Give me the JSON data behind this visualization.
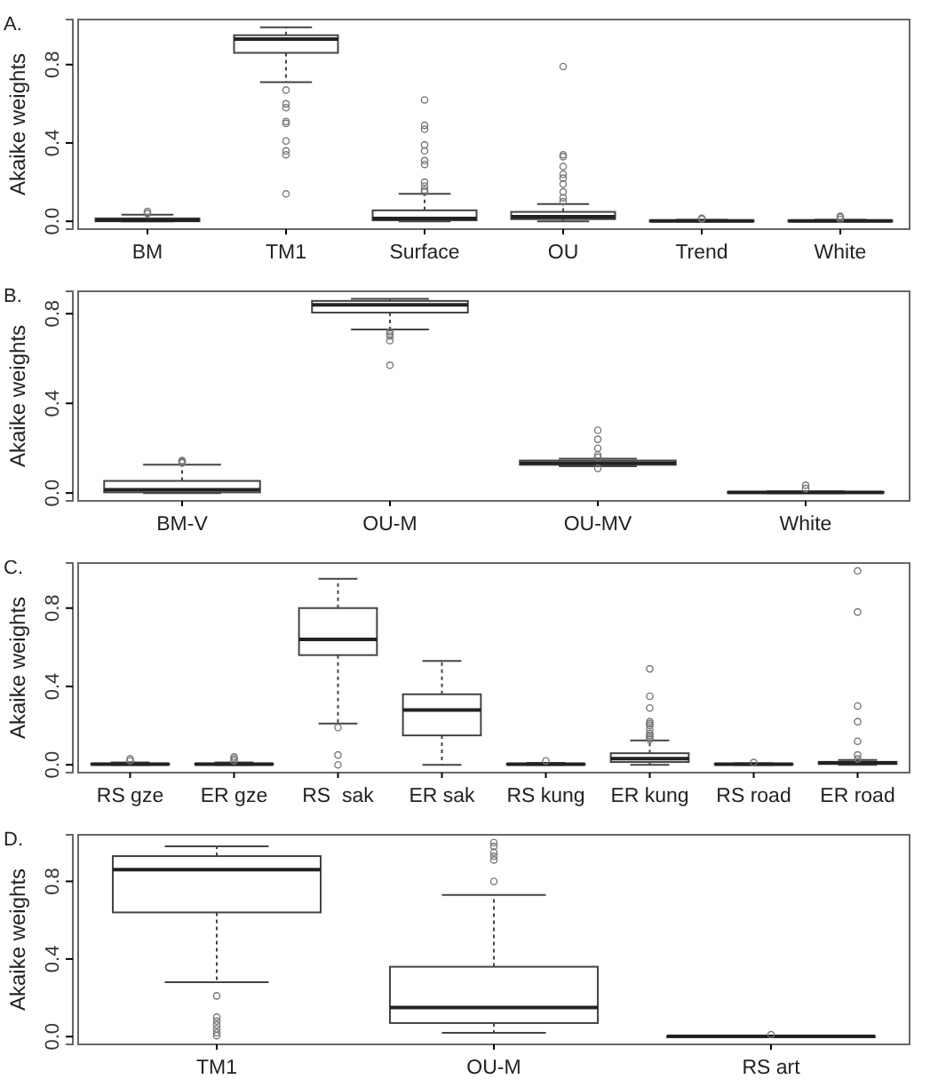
{
  "chart_data": [
    {
      "type": "box",
      "title": "A.",
      "ylabel": "Akaike weights",
      "categories": [
        "BM",
        "TM1",
        "Surface",
        "OU",
        "Trend",
        "White"
      ],
      "ylim": [
        -0.04,
        1.03
      ],
      "yticks": [
        {
          "value": 0,
          "label": "0.0"
        },
        {
          "value": 0.4,
          "label": "0.4"
        },
        {
          "value": 0.8,
          "label": "0.8"
        }
      ],
      "boxes": [
        {
          "low": 0,
          "q1": 0,
          "median": 0.005,
          "q3": 0.015,
          "high": 0.034,
          "outliers": [
            0.04,
            0.05
          ]
        },
        {
          "low": 0.71,
          "q1": 0.86,
          "median": 0.93,
          "q3": 0.95,
          "high": 0.99,
          "outliers": [
            0.67,
            0.6,
            0.58,
            0.51,
            0.5,
            0.41,
            0.36,
            0.34,
            0.14
          ]
        },
        {
          "low": 0,
          "q1": 0.005,
          "median": 0.014,
          "q3": 0.056,
          "high": 0.14,
          "outliers": [
            0.15,
            0.16,
            0.18,
            0.2,
            0.29,
            0.31,
            0.36,
            0.39,
            0.47,
            0.49,
            0.62
          ]
        },
        {
          "low": 0,
          "q1": 0.011,
          "median": 0.023,
          "q3": 0.048,
          "high": 0.088,
          "outliers": [
            0.1,
            0.12,
            0.15,
            0.19,
            0.22,
            0.24,
            0.28,
            0.33,
            0.34,
            0.79
          ]
        },
        {
          "low": 0,
          "q1": 0,
          "median": 0.002,
          "q3": 0.004,
          "high": 0.008,
          "outliers": [
            0.012,
            0.015
          ]
        },
        {
          "low": 0,
          "q1": 0,
          "median": 0.002,
          "q3": 0.004,
          "high": 0.008,
          "outliers": [
            0.01,
            0.02,
            0.025
          ]
        }
      ]
    },
    {
      "type": "box",
      "title": "B.",
      "ylabel": "Akaike weights",
      "categories": [
        "BM-V",
        "OU-M",
        "OU-MV",
        "White"
      ],
      "ylim": [
        -0.035,
        0.9
      ],
      "yticks": [
        {
          "value": 0,
          "label": "0.0"
        },
        {
          "value": 0.4,
          "label": "0.4"
        },
        {
          "value": 0.8,
          "label": "0.8"
        }
      ],
      "boxes": [
        {
          "low": 0,
          "q1": 0.003,
          "median": 0.015,
          "q3": 0.054,
          "high": 0.126,
          "outliers": [
            0.135,
            0.14,
            0.145
          ]
        },
        {
          "low": 0.73,
          "q1": 0.805,
          "median": 0.84,
          "q3": 0.857,
          "high": 0.866,
          "outliers": [
            0.72,
            0.71,
            0.7,
            0.68,
            0.57
          ]
        },
        {
          "low": 0.12,
          "q1": 0.126,
          "median": 0.133,
          "q3": 0.145,
          "high": 0.153,
          "outliers": [
            0.11,
            0.16,
            0.17,
            0.2,
            0.24,
            0.28
          ]
        },
        {
          "low": 0,
          "q1": 0.001,
          "median": 0.003,
          "q3": 0.005,
          "high": 0.008,
          "outliers": [
            0.02,
            0.035
          ]
        }
      ]
    },
    {
      "type": "box",
      "title": "C.",
      "ylabel": "Akaike weights",
      "categories": [
        "RS gze",
        "ER gze",
        "RS  sak",
        "ER sak",
        "RS kung",
        "ER kung",
        "RS road",
        "ER road"
      ],
      "ylim": [
        -0.04,
        1.03
      ],
      "yticks": [
        {
          "value": 0,
          "label": "0.0"
        },
        {
          "value": 0.4,
          "label": "0.4"
        },
        {
          "value": 0.8,
          "label": "0.8"
        }
      ],
      "boxes": [
        {
          "low": 0,
          "q1": 0.001,
          "median": 0.003,
          "q3": 0.006,
          "high": 0.012,
          "outliers": [
            0.02,
            0.03
          ]
        },
        {
          "low": 0,
          "q1": 0.001,
          "median": 0.003,
          "q3": 0.006,
          "high": 0.012,
          "outliers": [
            0.02,
            0.03,
            0.04
          ]
        },
        {
          "low": 0.21,
          "q1": 0.56,
          "median": 0.64,
          "q3": 0.8,
          "high": 0.95,
          "outliers": [
            0.19,
            0.05,
            0
          ]
        },
        {
          "low": 0,
          "q1": 0.15,
          "median": 0.28,
          "q3": 0.36,
          "high": 0.53
        },
        {
          "low": 0,
          "q1": 0.001,
          "median": 0.003,
          "q3": 0.005,
          "high": 0.01,
          "outliers": [
            0.02
          ]
        },
        {
          "low": 0,
          "q1": 0.014,
          "median": 0.031,
          "q3": 0.059,
          "high": 0.124,
          "outliers": [
            0.13,
            0.14,
            0.15,
            0.16,
            0.18,
            0.2,
            0.21,
            0.22,
            0.29,
            0.35,
            0.49
          ]
        },
        {
          "low": 0,
          "q1": 0.001,
          "median": 0.003,
          "q3": 0.005,
          "high": 0.008,
          "outliers": [
            0.012
          ]
        },
        {
          "low": 0,
          "q1": 0.004,
          "median": 0.01,
          "q3": 0.015,
          "high": 0.025,
          "outliers": [
            0.03,
            0.05,
            0.12,
            0.22,
            0.3,
            0.78,
            0.99
          ]
        }
      ]
    },
    {
      "type": "box",
      "title": "D.",
      "ylabel": "Akaike weights",
      "categories": [
        "TM1",
        "OU-M",
        "RS art"
      ],
      "ylim": [
        -0.04,
        1.04
      ],
      "yticks": [
        {
          "value": 0,
          "label": "0.0"
        },
        {
          "value": 0.4,
          "label": "0.4"
        },
        {
          "value": 0.8,
          "label": "0.8"
        }
      ],
      "boxes": [
        {
          "low": 0.28,
          "q1": 0.64,
          "median": 0.86,
          "q3": 0.93,
          "high": 0.98,
          "outliers": [
            0.21,
            0.1,
            0.08,
            0.06,
            0.04,
            0.02,
            0.005
          ]
        },
        {
          "low": 0.02,
          "q1": 0.07,
          "median": 0.15,
          "q3": 0.36,
          "high": 0.73,
          "outliers": [
            0.8,
            0.91,
            0.93,
            0.95,
            0.98,
            1.0
          ]
        },
        {
          "low": 0,
          "q1": 0,
          "median": 0.001,
          "q3": 0.002,
          "high": 0.003,
          "outliers": [
            0.01
          ]
        }
      ]
    }
  ]
}
